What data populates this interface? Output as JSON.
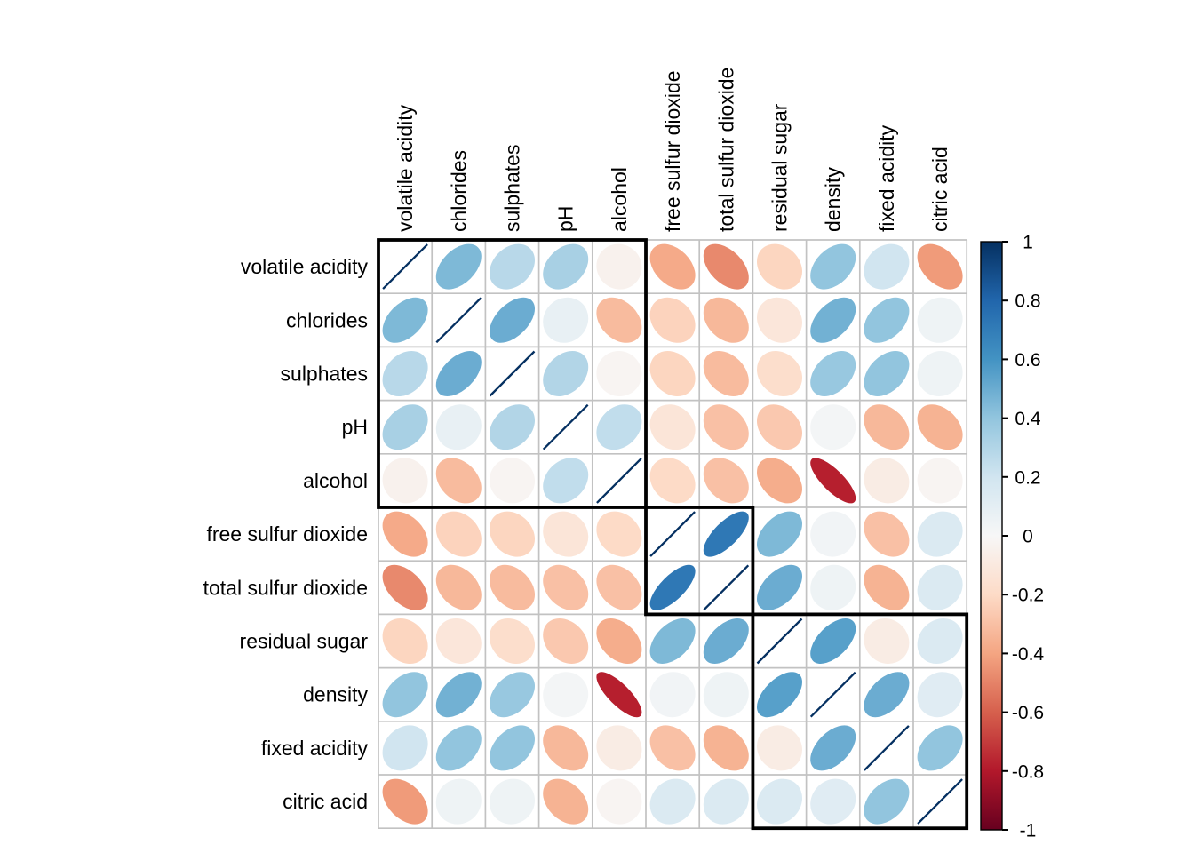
{
  "chart_data": {
    "type": "heatmap",
    "subtype": "correlation-ellipse-matrix",
    "title": "",
    "variables": [
      "volatile acidity",
      "chlorides",
      "sulphates",
      "pH",
      "alcohol",
      "free sulfur dioxide",
      "total sulfur dioxide",
      "residual sugar",
      "density",
      "fixed acidity",
      "citric acid"
    ],
    "matrix": [
      [
        1.0,
        0.45,
        0.28,
        0.33,
        -0.04,
        -0.38,
        -0.48,
        -0.22,
        0.4,
        0.2,
        -0.43
      ],
      [
        0.45,
        1.0,
        0.5,
        0.08,
        -0.32,
        -0.23,
        -0.33,
        -0.12,
        0.48,
        0.4,
        0.05
      ],
      [
        0.28,
        0.5,
        1.0,
        0.3,
        -0.02,
        -0.22,
        -0.32,
        -0.18,
        0.38,
        0.4,
        0.05
      ],
      [
        0.33,
        0.08,
        0.3,
        1.0,
        0.25,
        -0.13,
        -0.3,
        -0.27,
        0.02,
        -0.33,
        -0.35
      ],
      [
        -0.04,
        -0.32,
        -0.02,
        0.25,
        1.0,
        -0.2,
        -0.3,
        -0.37,
        -0.78,
        -0.08,
        -0.02
      ],
      [
        -0.38,
        -0.23,
        -0.22,
        -0.13,
        -0.2,
        1.0,
        0.72,
        0.45,
        0.03,
        -0.3,
        0.15
      ],
      [
        -0.48,
        -0.33,
        -0.32,
        -0.3,
        -0.3,
        0.72,
        1.0,
        0.5,
        0.05,
        -0.35,
        0.15
      ],
      [
        -0.22,
        -0.12,
        -0.18,
        -0.27,
        -0.37,
        0.45,
        0.5,
        1.0,
        0.55,
        -0.08,
        0.15
      ],
      [
        0.4,
        0.48,
        0.38,
        0.02,
        -0.78,
        0.03,
        0.05,
        0.55,
        1.0,
        0.5,
        0.12
      ],
      [
        0.2,
        0.4,
        0.4,
        -0.33,
        -0.08,
        -0.3,
        -0.35,
        -0.08,
        0.5,
        1.0,
        0.4
      ],
      [
        -0.43,
        0.05,
        0.05,
        -0.35,
        -0.02,
        0.15,
        0.15,
        0.15,
        0.12,
        0.4,
        1.0
      ]
    ],
    "clusters": [
      {
        "start": 0,
        "end": 5
      },
      {
        "start": 5,
        "end": 7
      },
      {
        "start": 7,
        "end": 11
      }
    ],
    "colorbar": {
      "position": "right",
      "min": -1,
      "max": 1,
      "tick_values": [
        1,
        0.8,
        0.6,
        0.4,
        0.2,
        0,
        -0.2,
        -0.4,
        -0.6,
        -0.8,
        -1
      ],
      "tick_labels": [
        "1",
        "0.8",
        "0.6",
        "0.4",
        "0.2",
        "0",
        "-0.2",
        "-0.4",
        "-0.6",
        "-0.8",
        "-1"
      ]
    },
    "palette_stops_pos_to_neg": [
      "#053061",
      "#2166AC",
      "#4393C3",
      "#92C5DE",
      "#D1E5F0",
      "#F7F7F7",
      "#FDDBC7",
      "#F4A582",
      "#D6604D",
      "#B2182B",
      "#67001F"
    ],
    "grid": true,
    "xlabel": "",
    "ylabel": ""
  },
  "colors": {
    "background": "#ffffff",
    "grid": "#c2c2c2",
    "cluster_border": "#000000",
    "diagonal_line": "#0b3060",
    "text": "#000000",
    "colorbar_border": "#000000"
  }
}
